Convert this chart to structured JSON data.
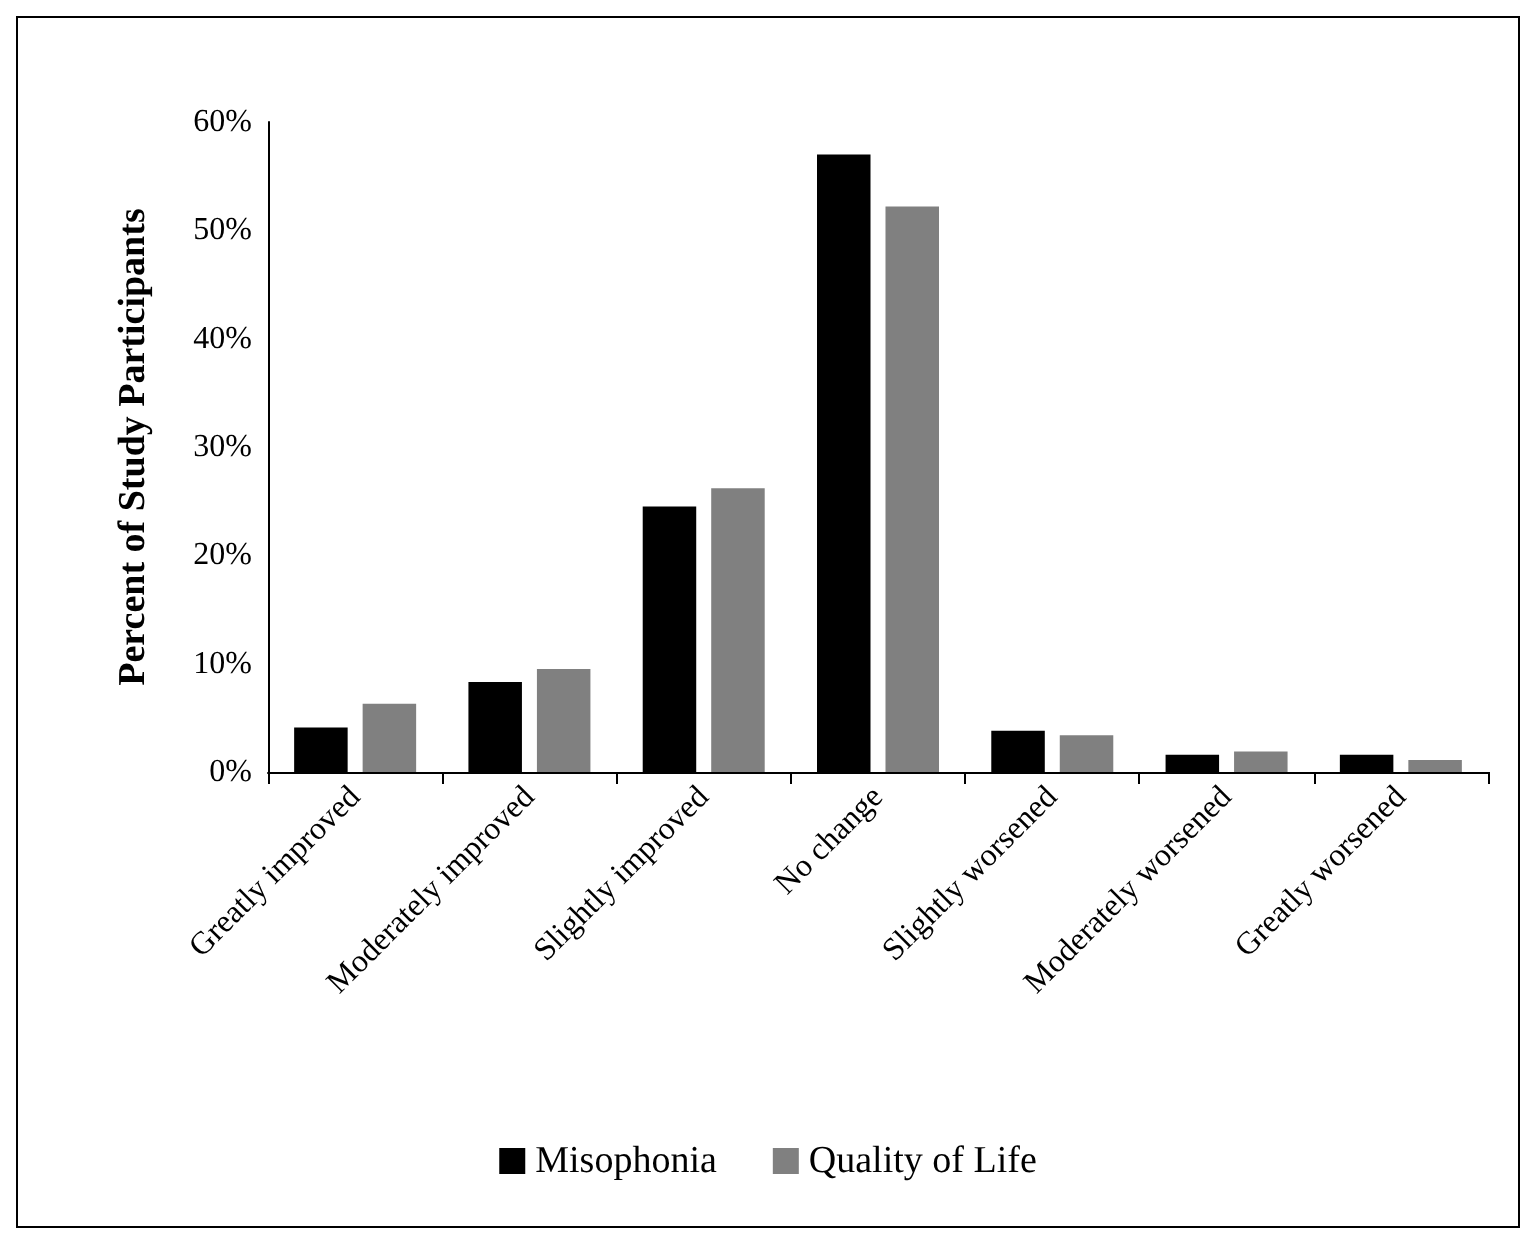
{
  "chart_data": {
    "type": "bar",
    "ylabel": "Percent of Study Participants",
    "categories": [
      "Greatly improved",
      "Moderately improved",
      "Slightly improved",
      "No change",
      "Slightly worsened",
      "Moderately worsened",
      "Greatly worsened"
    ],
    "series": [
      {
        "name": "Misophonia",
        "color": "#000000",
        "values": [
          4.1,
          8.3,
          24.5,
          57,
          3.8,
          1.6,
          1.6
        ]
      },
      {
        "name": "Quality of Life",
        "color": "#808080",
        "values": [
          6.3,
          9.5,
          26.2,
          52.2,
          3.4,
          1.9,
          1.1
        ]
      }
    ],
    "ylim": [
      0,
      60
    ],
    "yticks": [
      {
        "value": 0,
        "label": "0%"
      },
      {
        "value": 10,
        "label": "10%"
      },
      {
        "value": 20,
        "label": "20%"
      },
      {
        "value": 30,
        "label": "30%"
      },
      {
        "value": 40,
        "label": "40%"
      },
      {
        "value": 50,
        "label": "50%"
      },
      {
        "value": 60,
        "label": "60%"
      }
    ],
    "grid": false,
    "legend": "bottom"
  }
}
